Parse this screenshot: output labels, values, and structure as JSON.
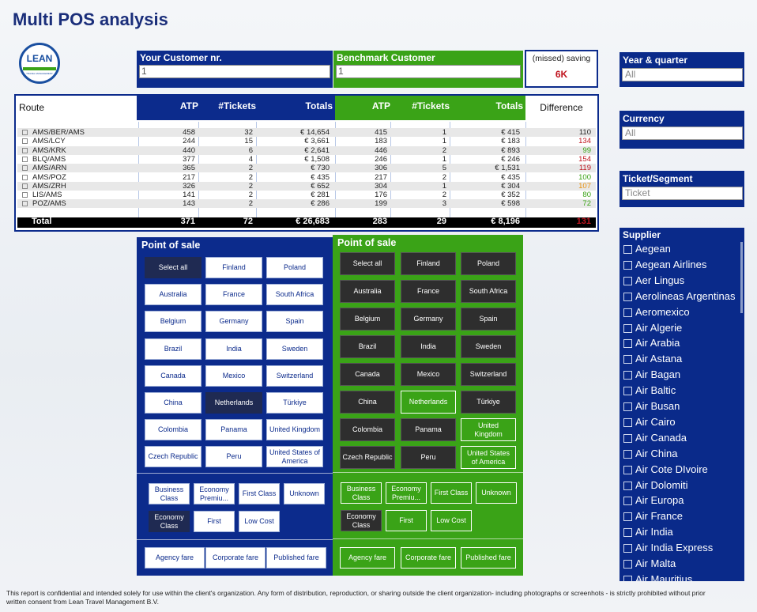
{
  "header": {
    "title": "Multi POS analysis",
    "logo": "LEAN",
    "logo_sub": "TRAVEL MANAGEMENT"
  },
  "filters": {
    "your_customer": {
      "label": "Your Customer nr.",
      "value": "1"
    },
    "benchmark_customer": {
      "label": "Benchmark Customer",
      "value": "1"
    },
    "missed_saving": {
      "label": "(missed) saving",
      "value": "6K"
    }
  },
  "table": {
    "columns": [
      "Route",
      "ATP",
      "#Tickets",
      "Totals",
      "ATP",
      "#Tickets",
      "Totals",
      "Difference"
    ],
    "rows": [
      {
        "cells": [
          "AMS/BER/AMS",
          "458",
          "32",
          "€ 14,654",
          "415",
          "1",
          "€ 415",
          "110"
        ],
        "difference_color": "#222222"
      },
      {
        "cells": [
          "AMS/LCY",
          "244",
          "15",
          "€ 3,661",
          "183",
          "1",
          "€ 183",
          "134"
        ],
        "difference_color": "#c0151f"
      },
      {
        "cells": [
          "AMS/KRK",
          "440",
          "6",
          "€ 2,641",
          "446",
          "2",
          "€ 893",
          "99"
        ],
        "difference_color": "#3aa317"
      },
      {
        "cells": [
          "BLQ/AMS",
          "377",
          "4",
          "€ 1,508",
          "246",
          "1",
          "€ 246",
          "154"
        ],
        "difference_color": "#c0151f"
      },
      {
        "cells": [
          "AMS/ARN",
          "365",
          "2",
          "€ 730",
          "306",
          "5",
          "€ 1,531",
          "119"
        ],
        "difference_color": "#c0151f"
      },
      {
        "cells": [
          "AMS/POZ",
          "217",
          "2",
          "€ 435",
          "217",
          "2",
          "€ 435",
          "100"
        ],
        "difference_color": "#3aa317"
      },
      {
        "cells": [
          "AMS/ZRH",
          "326",
          "2",
          "€ 652",
          "304",
          "1",
          "€ 304",
          "107"
        ],
        "difference_color": "#e8900c"
      },
      {
        "cells": [
          "LIS/AMS",
          "141",
          "2",
          "€ 281",
          "176",
          "2",
          "€ 352",
          "80"
        ],
        "difference_color": "#3aa317"
      },
      {
        "cells": [
          "POZ/AMS",
          "143",
          "2",
          "€ 286",
          "199",
          "3",
          "€ 598",
          "72"
        ],
        "difference_color": "#3aa317"
      }
    ],
    "total": {
      "cells": [
        "Total",
        "371",
        "72",
        "€ 26,683",
        "283",
        "29",
        "€ 8,196",
        "131"
      ],
      "difference_color": "#c0151f"
    }
  },
  "pos_left": {
    "title": "Point of sale",
    "countries": [
      {
        "label": "Select all",
        "selected": true
      },
      {
        "label": "Finland",
        "selected": false
      },
      {
        "label": "Poland",
        "selected": false
      },
      {
        "label": "Australia",
        "selected": false
      },
      {
        "label": "France",
        "selected": false
      },
      {
        "label": "South Africa",
        "selected": false
      },
      {
        "label": "Belgium",
        "selected": false
      },
      {
        "label": "Germany",
        "selected": false
      },
      {
        "label": "Spain",
        "selected": false
      },
      {
        "label": "Brazil",
        "selected": false
      },
      {
        "label": "India",
        "selected": false
      },
      {
        "label": "Sweden",
        "selected": false
      },
      {
        "label": "Canada",
        "selected": false
      },
      {
        "label": "Mexico",
        "selected": false
      },
      {
        "label": "Switzerland",
        "selected": false
      },
      {
        "label": "China",
        "selected": false
      },
      {
        "label": "Netherlands",
        "selected": true
      },
      {
        "label": "Türkiye",
        "selected": false
      },
      {
        "label": "Colombia",
        "selected": false
      },
      {
        "label": "Panama",
        "selected": false
      },
      {
        "label": "United Kingdom",
        "selected": false
      },
      {
        "label": "Czech Republic",
        "selected": false
      },
      {
        "label": "Peru",
        "selected": false
      },
      {
        "label": "United States of America",
        "selected": false
      }
    ],
    "classes": [
      {
        "label": "Business Class",
        "selected": false
      },
      {
        "label": "Economy Premiu...",
        "selected": false
      },
      {
        "label": "First Class",
        "selected": false
      },
      {
        "label": "Unknown",
        "selected": false
      },
      {
        "label": "Economy Class",
        "selected": true
      },
      {
        "label": "First",
        "selected": false
      },
      {
        "label": "Low Cost",
        "selected": false
      }
    ],
    "fares": [
      {
        "label": "Agency fare",
        "selected": false
      },
      {
        "label": "Corporate fare",
        "selected": false
      },
      {
        "label": "Published fare",
        "selected": false
      }
    ]
  },
  "pos_right": {
    "title": "Point of sale",
    "countries": [
      {
        "label": "Select all",
        "selected": true
      },
      {
        "label": "Finland",
        "selected": true
      },
      {
        "label": "Poland",
        "selected": true
      },
      {
        "label": "Australia",
        "selected": true
      },
      {
        "label": "France",
        "selected": true
      },
      {
        "label": "South Africa",
        "selected": true
      },
      {
        "label": "Belgium",
        "selected": true
      },
      {
        "label": "Germany",
        "selected": true
      },
      {
        "label": "Spain",
        "selected": true
      },
      {
        "label": "Brazil",
        "selected": true
      },
      {
        "label": "India",
        "selected": true
      },
      {
        "label": "Sweden",
        "selected": true
      },
      {
        "label": "Canada",
        "selected": true
      },
      {
        "label": "Mexico",
        "selected": true
      },
      {
        "label": "Switzerland",
        "selected": true
      },
      {
        "label": "China",
        "selected": true
      },
      {
        "label": "Netherlands",
        "selected": false
      },
      {
        "label": "Türkiye",
        "selected": true
      },
      {
        "label": "Colombia",
        "selected": true
      },
      {
        "label": "Panama",
        "selected": true
      },
      {
        "label": "United Kingdom",
        "selected": false
      },
      {
        "label": "Czech Republic",
        "selected": true
      },
      {
        "label": "Peru",
        "selected": true
      },
      {
        "label": "United States of America",
        "selected": false
      }
    ],
    "classes": [
      {
        "label": "Business Class",
        "selected": false
      },
      {
        "label": "Economy Premiu...",
        "selected": false
      },
      {
        "label": "First Class",
        "selected": false
      },
      {
        "label": "Unknown",
        "selected": false
      },
      {
        "label": "Economy Class",
        "selected": true
      },
      {
        "label": "First",
        "selected": false
      },
      {
        "label": "Low Cost",
        "selected": false
      }
    ],
    "fares": [
      {
        "label": "Agency fare",
        "selected": false
      },
      {
        "label": "Corporate fare",
        "selected": false
      },
      {
        "label": "Published fare",
        "selected": false
      }
    ]
  },
  "slicers": {
    "year_quarter": {
      "label": "Year & quarter",
      "value": "All"
    },
    "currency": {
      "label": "Currency",
      "value": "All"
    },
    "ticket_segment": {
      "label": "Ticket/Segment",
      "value": "Ticket"
    },
    "supplier": {
      "label": "Supplier",
      "items": [
        "Aegean",
        "Aegean Airlines",
        "Aer Lingus",
        "Aerolineas Argentinas",
        "Aeromexico",
        "Air Algerie",
        "Air Arabia",
        "Air Astana",
        "Air Bagan",
        "Air Baltic",
        "Air Busan",
        "Air Cairo",
        "Air Canada",
        "Air China",
        "Air Cote DIvoire",
        "Air Dolomiti",
        "Air Europa",
        "Air France",
        "Air India",
        "Air India Express",
        "Air Malta",
        "Air Mauritius"
      ]
    }
  },
  "footer": "This report is confidential and intended solely for use within the client's organization. Any form of distribution, reproduction, or sharing outside the client organization- including photographs or screenhots - is strictly prohibited without prior written consent from Lean Travel Management B.V."
}
